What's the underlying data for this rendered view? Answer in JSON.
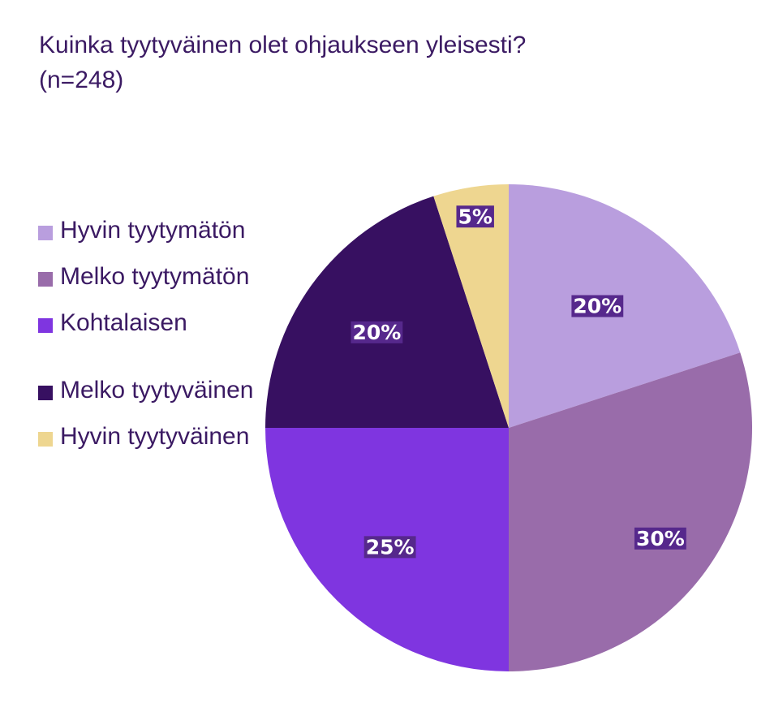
{
  "chart_data": {
    "type": "pie",
    "title": "Kuinka tyytyväinen olet ohjaukseen yleisesti? (n=248)",
    "legend_position": "left",
    "start_angle": "top, clockwise",
    "categories": [
      "Hyvin tyytymätön",
      "Melko tyytymätön",
      "Kohtalaisen",
      "Melko tyytyväinen",
      "Hyvin tyytyväinen"
    ],
    "values": [
      20,
      30,
      25,
      20,
      5
    ],
    "data_labels": [
      "20%",
      "30%",
      "25%",
      "20%",
      "5%"
    ],
    "colors": [
      "#b99ede",
      "#996caa",
      "#7f35e0",
      "#371061",
      "#eed690"
    ],
    "label_bg": "#56288c"
  }
}
